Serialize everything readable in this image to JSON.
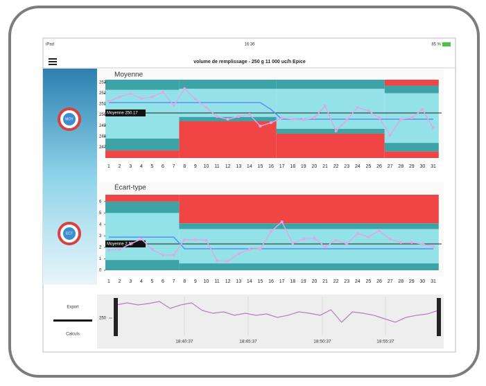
{
  "status": {
    "carrier": "iPad",
    "time": "16:36",
    "battery": "85 %"
  },
  "header": {
    "title": "volume de remplissage - 250 g 11 000 uc/h Epice"
  },
  "sidebar": {
    "buttons": [
      "MOY",
      "ECT"
    ],
    "tabs": [
      "Export",
      "Calculs"
    ]
  },
  "chart_data": [
    {
      "type": "control",
      "title": "Moyenne",
      "categories": [
        "1",
        "2",
        "3",
        "4",
        "5",
        "6",
        "7",
        "8",
        "9",
        "10",
        "11",
        "12",
        "13",
        "14",
        "15",
        "16",
        "17",
        "18",
        "19",
        "20",
        "21",
        "22",
        "23",
        "24",
        "25",
        "26",
        "27",
        "28",
        "29",
        "30",
        "31"
      ],
      "ylim": [
        246,
        253.25
      ],
      "yticks": [
        253,
        252,
        251,
        250,
        249,
        248,
        247
      ],
      "series": [
        {
          "color": "#e3a6e6",
          "values": [
            251.26,
            251.65,
            251.97,
            251.52,
            251.65,
            252.09,
            250.88,
            252.42,
            251.45,
            250.68,
            249.84,
            249.59,
            249.84,
            250.04,
            248.95,
            249.27,
            249.72,
            249.59,
            249.53,
            249.72,
            250.81,
            248.5,
            249.53,
            250.68,
            250.36,
            249.72,
            248.12,
            249.59,
            249.72,
            250.49,
            248.76
          ]
        },
        {
          "color": "#5d8ff0",
          "values": [
            251.13,
            251.13,
            251.13,
            251.13,
            251.13,
            251.13,
            251.13,
            251.13,
            251.13,
            251.13,
            251.13,
            251.13,
            251.13,
            251.13,
            251.13,
            250.49,
            249.59,
            249.59,
            249.59,
            249.59,
            249.59,
            249.59,
            249.59,
            249.59,
            249.59,
            249.59,
            249.59,
            249.59,
            249.59,
            249.59,
            249.59
          ]
        }
      ],
      "mean": 250.17,
      "mean_label": "Moyenne 250.17",
      "zone_colors": {
        "out": "#f04545",
        "warn": "#3ea3a6",
        "ok": "#92e2e8"
      },
      "zones": [
        {
          "from": 1,
          "to": 7,
          "lsl": 246.7,
          "lcl": 247.8,
          "ucl": 252.3,
          "usl": null
        },
        {
          "from": 8,
          "to": 16,
          "lsl": 249.4,
          "lcl": 249.8,
          "ucl": 252.4,
          "usl": null
        },
        {
          "from": 17,
          "to": 26,
          "lsl": 248.25,
          "lcl": 248.7,
          "ucl": 252.4,
          "usl": null
        },
        {
          "from": 27,
          "to": 31,
          "lsl": 246.6,
          "lcl": 247.4,
          "ucl": 252.0,
          "usl": 252.7
        }
      ]
    },
    {
      "type": "control",
      "title": "Écart-type",
      "categories": [
        "1",
        "2",
        "3",
        "4",
        "5",
        "6",
        "7",
        "8",
        "9",
        "10",
        "11",
        "12",
        "13",
        "14",
        "15",
        "16",
        "17",
        "18",
        "19",
        "20",
        "21",
        "22",
        "23",
        "24",
        "25",
        "26",
        "27",
        "28",
        "29",
        "30",
        "31"
      ],
      "ylim": [
        0,
        6.6
      ],
      "yticks": [
        6,
        5,
        4,
        3,
        2,
        1,
        0
      ],
      "series": [
        {
          "color": "#e3a6e6",
          "values": [
            1.76,
            1.82,
            2.3,
            2.73,
            1.82,
            1.33,
            1.33,
            2.67,
            2.67,
            2.61,
            0.85,
            0.79,
            1.45,
            1.82,
            1.88,
            3.39,
            4.24,
            2.36,
            2.73,
            2.79,
            2.06,
            2.61,
            2.3,
            3.21,
            2.91,
            3.45,
            2.73,
            2.42,
            2.42,
            2.3,
            2.06
          ]
        },
        {
          "color": "#5d8ff0",
          "values": [
            2.9,
            2.9,
            2.9,
            2.9,
            2.9,
            2.9,
            2.9,
            1.88,
            1.88,
            1.88,
            1.88,
            1.88,
            1.88,
            1.88,
            1.88,
            1.88,
            1.88,
            1.88,
            1.88,
            1.88,
            1.88,
            1.88,
            1.88,
            1.88,
            1.88,
            1.88,
            1.88,
            1.88,
            1.88,
            1.88,
            1.88
          ]
        }
      ],
      "mean": 2.3,
      "mean_label": "Moyenne 2.30",
      "zone_colors": {
        "out": "#f04545",
        "warn": "#3ea3a6",
        "ok": "#92e2e8"
      },
      "zones": [
        {
          "from": 1,
          "to": 7,
          "lsl": 0,
          "lcl": 0.9,
          "ucl": 5.0,
          "usl": 6.0
        },
        {
          "from": 8,
          "to": 31,
          "lsl": 0,
          "lcl": 0.6,
          "ucl": 3.6,
          "usl": 4.1
        }
      ]
    },
    {
      "type": "overview",
      "color": "#b77ac0",
      "values": [
        252.45,
        252.84,
        252.45,
        252.71,
        253.1,
        251.81,
        252.45,
        252.84,
        251.42,
        250.9,
        251.16,
        250.52,
        250.9,
        250.52,
        250.77,
        250.13,
        250.52,
        251.16,
        250.9,
        250.52,
        251.55,
        249.23,
        251.16,
        250.9,
        250.52,
        249.87,
        249.23,
        250.13,
        250.52,
        250.77,
        251.42
      ],
      "ylim": [
        246,
        254
      ],
      "yticks": [
        250
      ],
      "xlim": [
        0,
        30
      ],
      "xticks": [
        {
          "value": 6.33,
          "label": "18:40:37"
        },
        {
          "value": 12.28,
          "label": "18:45:37"
        },
        {
          "value": 19.2,
          "label": "18:50:37"
        },
        {
          "value": 25.08,
          "label": "18:55:37"
        }
      ]
    }
  ]
}
